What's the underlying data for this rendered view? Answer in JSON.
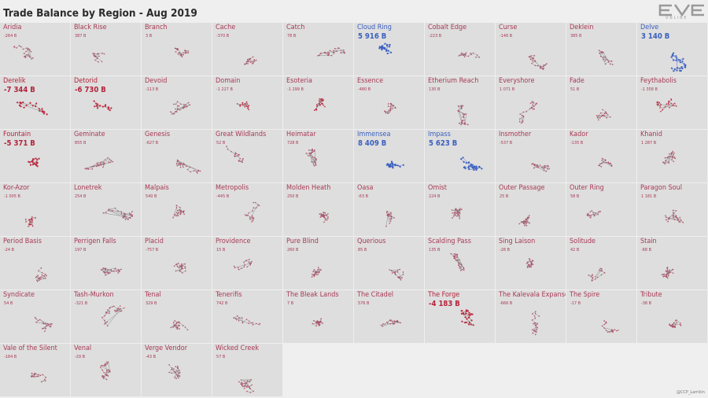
{
  "title": "Trade Balance by Region - Aug 2019",
  "logo": {
    "text": "EVE",
    "subtext": "ONLINE"
  },
  "credit": "@CCP_Larrikin",
  "colors": {
    "negative": "#b3243b",
    "positive": "#3a5fbf",
    "neutral": "#777777"
  },
  "chart_data": {
    "type": "table",
    "unit": "B",
    "regions": [
      {
        "name": "Aridia",
        "value": "-264 B",
        "num": -264
      },
      {
        "name": "Black Rise",
        "value": "387 B",
        "num": 387
      },
      {
        "name": "Branch",
        "value": "3 B",
        "num": 3
      },
      {
        "name": "Cache",
        "value": "-370 B",
        "num": -370
      },
      {
        "name": "Catch",
        "value": "78 B",
        "num": 78
      },
      {
        "name": "Cloud Ring",
        "value": "5 916 B",
        "num": 5916
      },
      {
        "name": "Cobalt Edge",
        "value": "-223 B",
        "num": -223
      },
      {
        "name": "Curse",
        "value": "-146 B",
        "num": -146
      },
      {
        "name": "Deklein",
        "value": "385 B",
        "num": 385
      },
      {
        "name": "Delve",
        "value": "3 140 B",
        "num": 3140
      },
      {
        "name": "Derelik",
        "value": "-7 344 B",
        "num": -7344
      },
      {
        "name": "Detorid",
        "value": "-6 730 B",
        "num": -6730
      },
      {
        "name": "Devoid",
        "value": "-113 B",
        "num": -113
      },
      {
        "name": "Domain",
        "value": "-1 227 B",
        "num": -1227
      },
      {
        "name": "Esoteria",
        "value": "-1 299 B",
        "num": -1299
      },
      {
        "name": "Essence",
        "value": "-480 B",
        "num": -480
      },
      {
        "name": "Etherium Reach",
        "value": "130 B",
        "num": 130
      },
      {
        "name": "Everyshore",
        "value": "1 071 B",
        "num": 1071
      },
      {
        "name": "Fade",
        "value": "51 B",
        "num": 51
      },
      {
        "name": "Feythabolis",
        "value": "-1 358 B",
        "num": -1358
      },
      {
        "name": "Fountain",
        "value": "-5 371 B",
        "num": -5371
      },
      {
        "name": "Geminate",
        "value": "855 B",
        "num": 855
      },
      {
        "name": "Genesis",
        "value": "-627 B",
        "num": -627
      },
      {
        "name": "Great Wildlands",
        "value": "52 B",
        "num": 52
      },
      {
        "name": "Heimatar",
        "value": "728 B",
        "num": 728
      },
      {
        "name": "Immensea",
        "value": "8 409 B",
        "num": 8409
      },
      {
        "name": "Impass",
        "value": "5 623 B",
        "num": 5623
      },
      {
        "name": "Insmother",
        "value": "-537 B",
        "num": -537
      },
      {
        "name": "Kador",
        "value": "-135 B",
        "num": -135
      },
      {
        "name": "Khanid",
        "value": "1 287 B",
        "num": 1287
      },
      {
        "name": "Kor-Azor",
        "value": "-1 005 B",
        "num": -1005
      },
      {
        "name": "Lonetrek",
        "value": "254 B",
        "num": 254
      },
      {
        "name": "Malpais",
        "value": "540 B",
        "num": 540
      },
      {
        "name": "Metropolis",
        "value": "-445 B",
        "num": -445
      },
      {
        "name": "Molden Heath",
        "value": "250 B",
        "num": 250
      },
      {
        "name": "Oasa",
        "value": "-63 B",
        "num": -63
      },
      {
        "name": "Omist",
        "value": "224 B",
        "num": 224
      },
      {
        "name": "Outer Passage",
        "value": "25 B",
        "num": 25
      },
      {
        "name": "Outer Ring",
        "value": "58 B",
        "num": 58
      },
      {
        "name": "Paragon Soul",
        "value": "1 181 B",
        "num": 1181
      },
      {
        "name": "Period Basis",
        "value": "-24 B",
        "num": -24
      },
      {
        "name": "Perrigen Falls",
        "value": "197 B",
        "num": 197
      },
      {
        "name": "Placid",
        "value": "-757 B",
        "num": -757
      },
      {
        "name": "Providence",
        "value": "15 B",
        "num": 15
      },
      {
        "name": "Pure Blind",
        "value": "260 B",
        "num": 260
      },
      {
        "name": "Querious",
        "value": "85 B",
        "num": 85
      },
      {
        "name": "Scalding Pass",
        "value": "135 B",
        "num": 135
      },
      {
        "name": "Sing Laison",
        "value": "-28 B",
        "num": -28
      },
      {
        "name": "Solitude",
        "value": "42 B",
        "num": 42
      },
      {
        "name": "Stain",
        "value": "-68 B",
        "num": -68
      },
      {
        "name": "Syndicate",
        "value": "54 B",
        "num": 54
      },
      {
        "name": "Tash-Murkon",
        "value": "-321 B",
        "num": -321
      },
      {
        "name": "Tenal",
        "value": "329 B",
        "num": 329
      },
      {
        "name": "Tenerifis",
        "value": "742 B",
        "num": 742
      },
      {
        "name": "The Bleak Lands",
        "value": "7 B",
        "num": 7
      },
      {
        "name": "The Citadel",
        "value": "576 B",
        "num": 576
      },
      {
        "name": "The Forge",
        "value": "-4 183 B",
        "num": -4183
      },
      {
        "name": "The Kalevala Expanse",
        "value": "-666 B",
        "num": -666
      },
      {
        "name": "The Spire",
        "value": "-17 B",
        "num": -17
      },
      {
        "name": "Tribute",
        "value": "-38 B",
        "num": -38
      },
      {
        "name": "Vale of the Silent",
        "value": "-184 B",
        "num": -184
      },
      {
        "name": "Venal",
        "value": "-29 B",
        "num": -29
      },
      {
        "name": "Verge Vendor",
        "value": "-43 B",
        "num": -43
      },
      {
        "name": "Wicked Creek",
        "value": "57 B",
        "num": 57
      }
    ]
  }
}
